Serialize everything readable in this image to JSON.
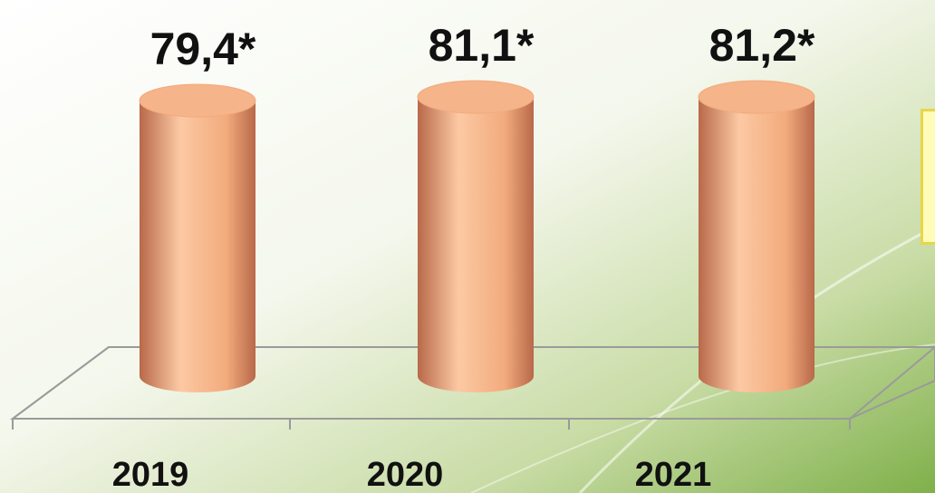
{
  "chart_data": {
    "type": "bar",
    "style": "3d-cylinder",
    "categories": [
      "2019",
      "2020",
      "2021"
    ],
    "values": [
      79.4,
      81.1,
      81.2
    ],
    "value_labels": [
      "79,4*",
      "81,1*",
      "81,2*"
    ],
    "title": "",
    "xlabel": "",
    "ylabel": "",
    "grid": false,
    "legend": "none"
  },
  "colors": {
    "bar_light": "#fcc9a4",
    "bar_mid": "#f2ab7c",
    "bar_dark": "#b8694a",
    "bar_top": "#f5b48a",
    "background_light": "#ffffff",
    "background_green": "#7fb04a",
    "floor_line": "#9a9a9a",
    "note_fill": "#fffbb8",
    "note_border": "#e8d64a"
  }
}
